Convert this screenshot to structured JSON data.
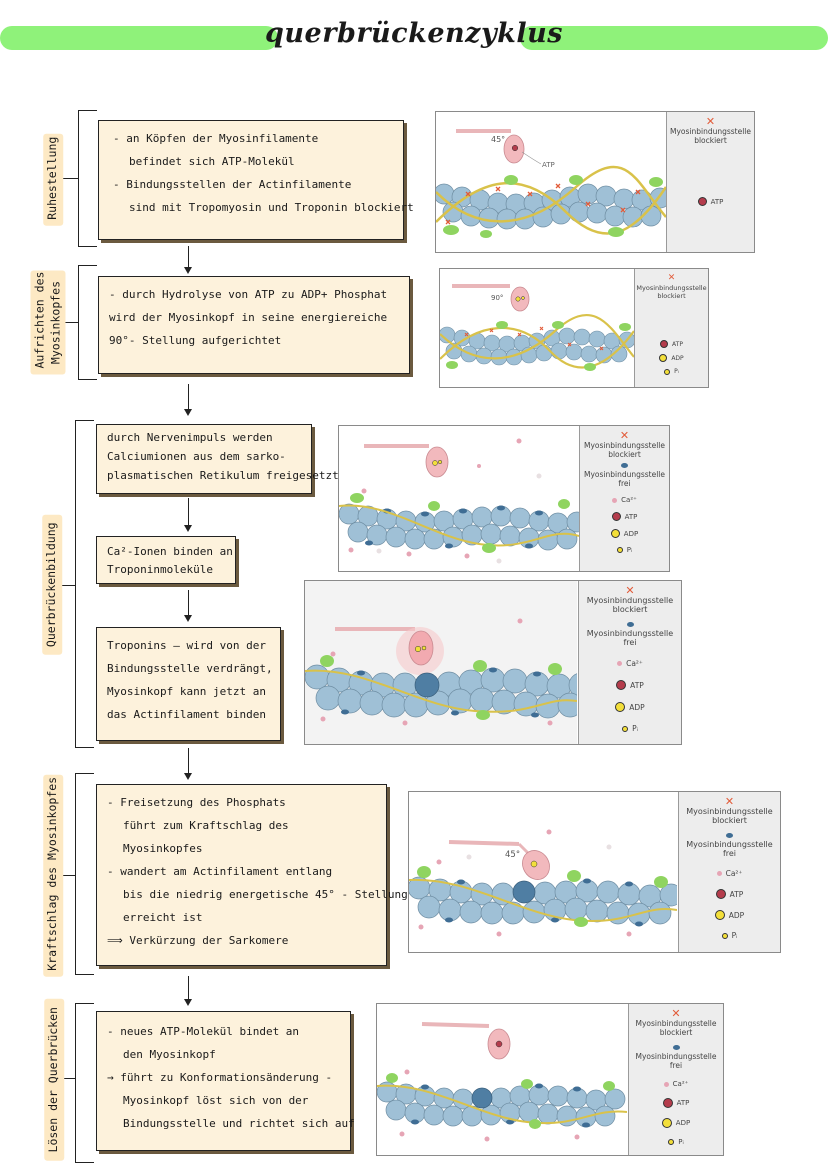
{
  "title": "querbrückenzyklus",
  "sections": [
    {
      "label_lines": [
        "Ruhestellung"
      ]
    },
    {
      "label_lines": [
        "Aufrichten des",
        "Myosinkopfes"
      ]
    },
    {
      "label_lines": [
        "Querbrückenbildung"
      ]
    },
    {
      "label_lines": [
        "Kraftschlag des Myosinkopfes"
      ]
    },
    {
      "label_lines": [
        "Lösen der Querbrücken"
      ]
    }
  ],
  "boxes": [
    {
      "lines": [
        "- an Köpfen der Myosinfilamente",
        "  befindet sich  ATP-Molekül",
        "- Bindungsstellen der Actinfilamente",
        "  sind mit Tropomyosin und Troponin  blockiert"
      ]
    },
    {
      "lines": [
        "- durch Hydrolyse von ATP zu ADP+ Phosphat",
        "wird der Myosinkopf in seine energiereiche",
        "90°- Stellung  aufgerichtet"
      ]
    },
    {
      "lines": [
        "durch Nervenimpuls   werden",
        "Calciumionen aus dem  sarko-",
        "plasmatischen Retikulum freigesetzt"
      ]
    },
    {
      "lines": [
        "Ca²-Ionen binden  an",
        "Troponinmoleküle"
      ]
    },
    {
      "lines": [
        "Troponins — wird von der",
        "Bindungsstelle verdrängt,",
        "Myosinkopf kann jetzt an",
        "das Actinfilament binden"
      ]
    },
    {
      "lines": [
        "- Freisetzung des Phosphats",
        "  führt zum Kraftschlag des",
        "  Myosinkopfes",
        "- wandert am Actinfilament entlang",
        "  bis die niedrig energetische 45° - Stellung",
        "  erreicht ist",
        "⟹ Verkürzung der Sarkomere"
      ]
    },
    {
      "lines": [
        "- neues ATP-Molekül bindet an",
        "  den  Myosinkopf",
        "→  führt zu Konformationsänderung -",
        "   Myosinkopf löst sich von der",
        "   Bindungsstelle und richtet sich auf"
      ]
    }
  ],
  "figures": [
    {
      "angle": "45°",
      "atp_label": "ATP",
      "legend": {
        "blocked": "Myosinbindungsstelle blockiert",
        "items": [
          "ATP"
        ]
      }
    },
    {
      "angle": "90°",
      "legend": {
        "blocked": "Myosinbindungsstelle blockiert",
        "items": [
          "ATP",
          "ADP",
          "Pᵢ"
        ]
      }
    },
    {
      "legend": {
        "blocked": "Myosinbindungsstelle blockiert",
        "free": "Myosinbindungsstelle frei",
        "items": [
          "Ca²⁺",
          "ATP",
          "ADP",
          "Pᵢ"
        ]
      }
    },
    {
      "legend": {
        "blocked": "Myosinbindungsstelle blockiert",
        "free": "Myosinbindungsstelle frei",
        "items": [
          "Ca²⁺",
          "ATP",
          "ADP",
          "Pᵢ"
        ]
      }
    },
    {
      "angle": "45°",
      "legend": {
        "blocked": "Myosinbindungsstelle blockiert",
        "free": "Myosinbindungsstelle frei",
        "items": [
          "Ca²⁺",
          "ATP",
          "ADP",
          "Pᵢ"
        ]
      }
    },
    {
      "legend": {
        "blocked": "Myosinbindungsstelle blockiert",
        "free": "Myosinbindungsstelle frei",
        "items": [
          "Ca²⁺",
          "ATP",
          "ADP",
          "Pᵢ"
        ]
      }
    }
  ],
  "colors": {
    "highlight": "#8ff27a",
    "label_bg": "#fde9c4",
    "box_bg": "#fdf2dc",
    "actin": "#9fc0d6",
    "tropomyosin": "#d9c24a",
    "troponin": "#8fd460",
    "myosin": "#f2b9bd",
    "blocked_x": "#e25b39",
    "atp": "#b43c4c",
    "adp": "#f3df3a",
    "ca": "#e6a5b5"
  }
}
